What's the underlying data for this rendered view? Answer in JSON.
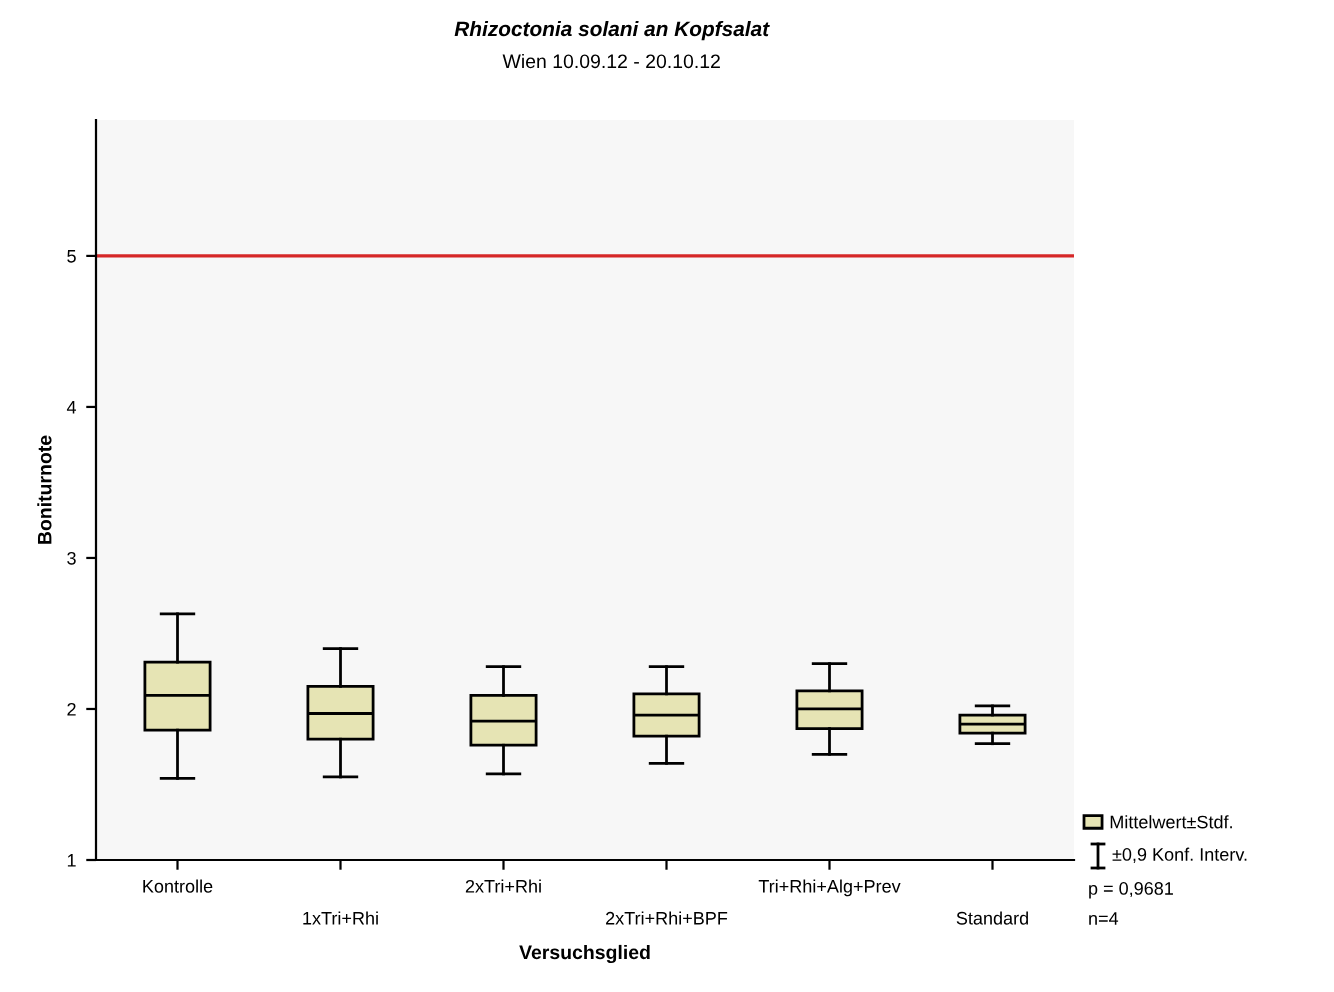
{
  "chart_data": {
    "type": "box",
    "title": "Rhizoctonia solani an Kopfsalat",
    "subtitle": "Wien 10.09.12 - 20.10.12",
    "xlabel": "Versuchsglied",
    "ylabel": "Boniturnote",
    "categories": [
      "Kontrolle",
      "1xTri+Rhi",
      "2xTri+Rhi",
      "2xTri+Rhi+BPF",
      "Tri+Rhi+Alg+Prev",
      "Standard"
    ],
    "series": [
      {
        "name": "Mittelwert±Stdf.",
        "color": "#e6e4b4",
        "boxes": [
          {
            "low": 1.54,
            "q1": 1.86,
            "median": 2.09,
            "q3": 2.31,
            "high": 2.63
          },
          {
            "low": 1.55,
            "q1": 1.8,
            "median": 1.97,
            "q3": 2.15,
            "high": 2.4
          },
          {
            "low": 1.57,
            "q1": 1.76,
            "median": 1.92,
            "q3": 2.09,
            "high": 2.28
          },
          {
            "low": 1.64,
            "q1": 1.82,
            "median": 1.96,
            "q3": 2.1,
            "high": 2.28
          },
          {
            "low": 1.7,
            "q1": 1.87,
            "median": 2.0,
            "q3": 2.12,
            "high": 2.3
          },
          {
            "low": 1.77,
            "q1": 1.84,
            "median": 1.9,
            "q3": 1.96,
            "high": 2.02
          }
        ]
      }
    ],
    "ylim": [
      1,
      5.9
    ],
    "yticks": [
      1,
      2,
      3,
      4,
      5
    ],
    "grid": false,
    "legend": "bottom right",
    "ref_lines": [
      {
        "axis": "y",
        "value": 5,
        "color": "#d62728",
        "line_style": "solid"
      }
    ],
    "annotations": [
      "±0,9 Konf. Interv.",
      "p = 0,9681",
      "n=4"
    ]
  }
}
